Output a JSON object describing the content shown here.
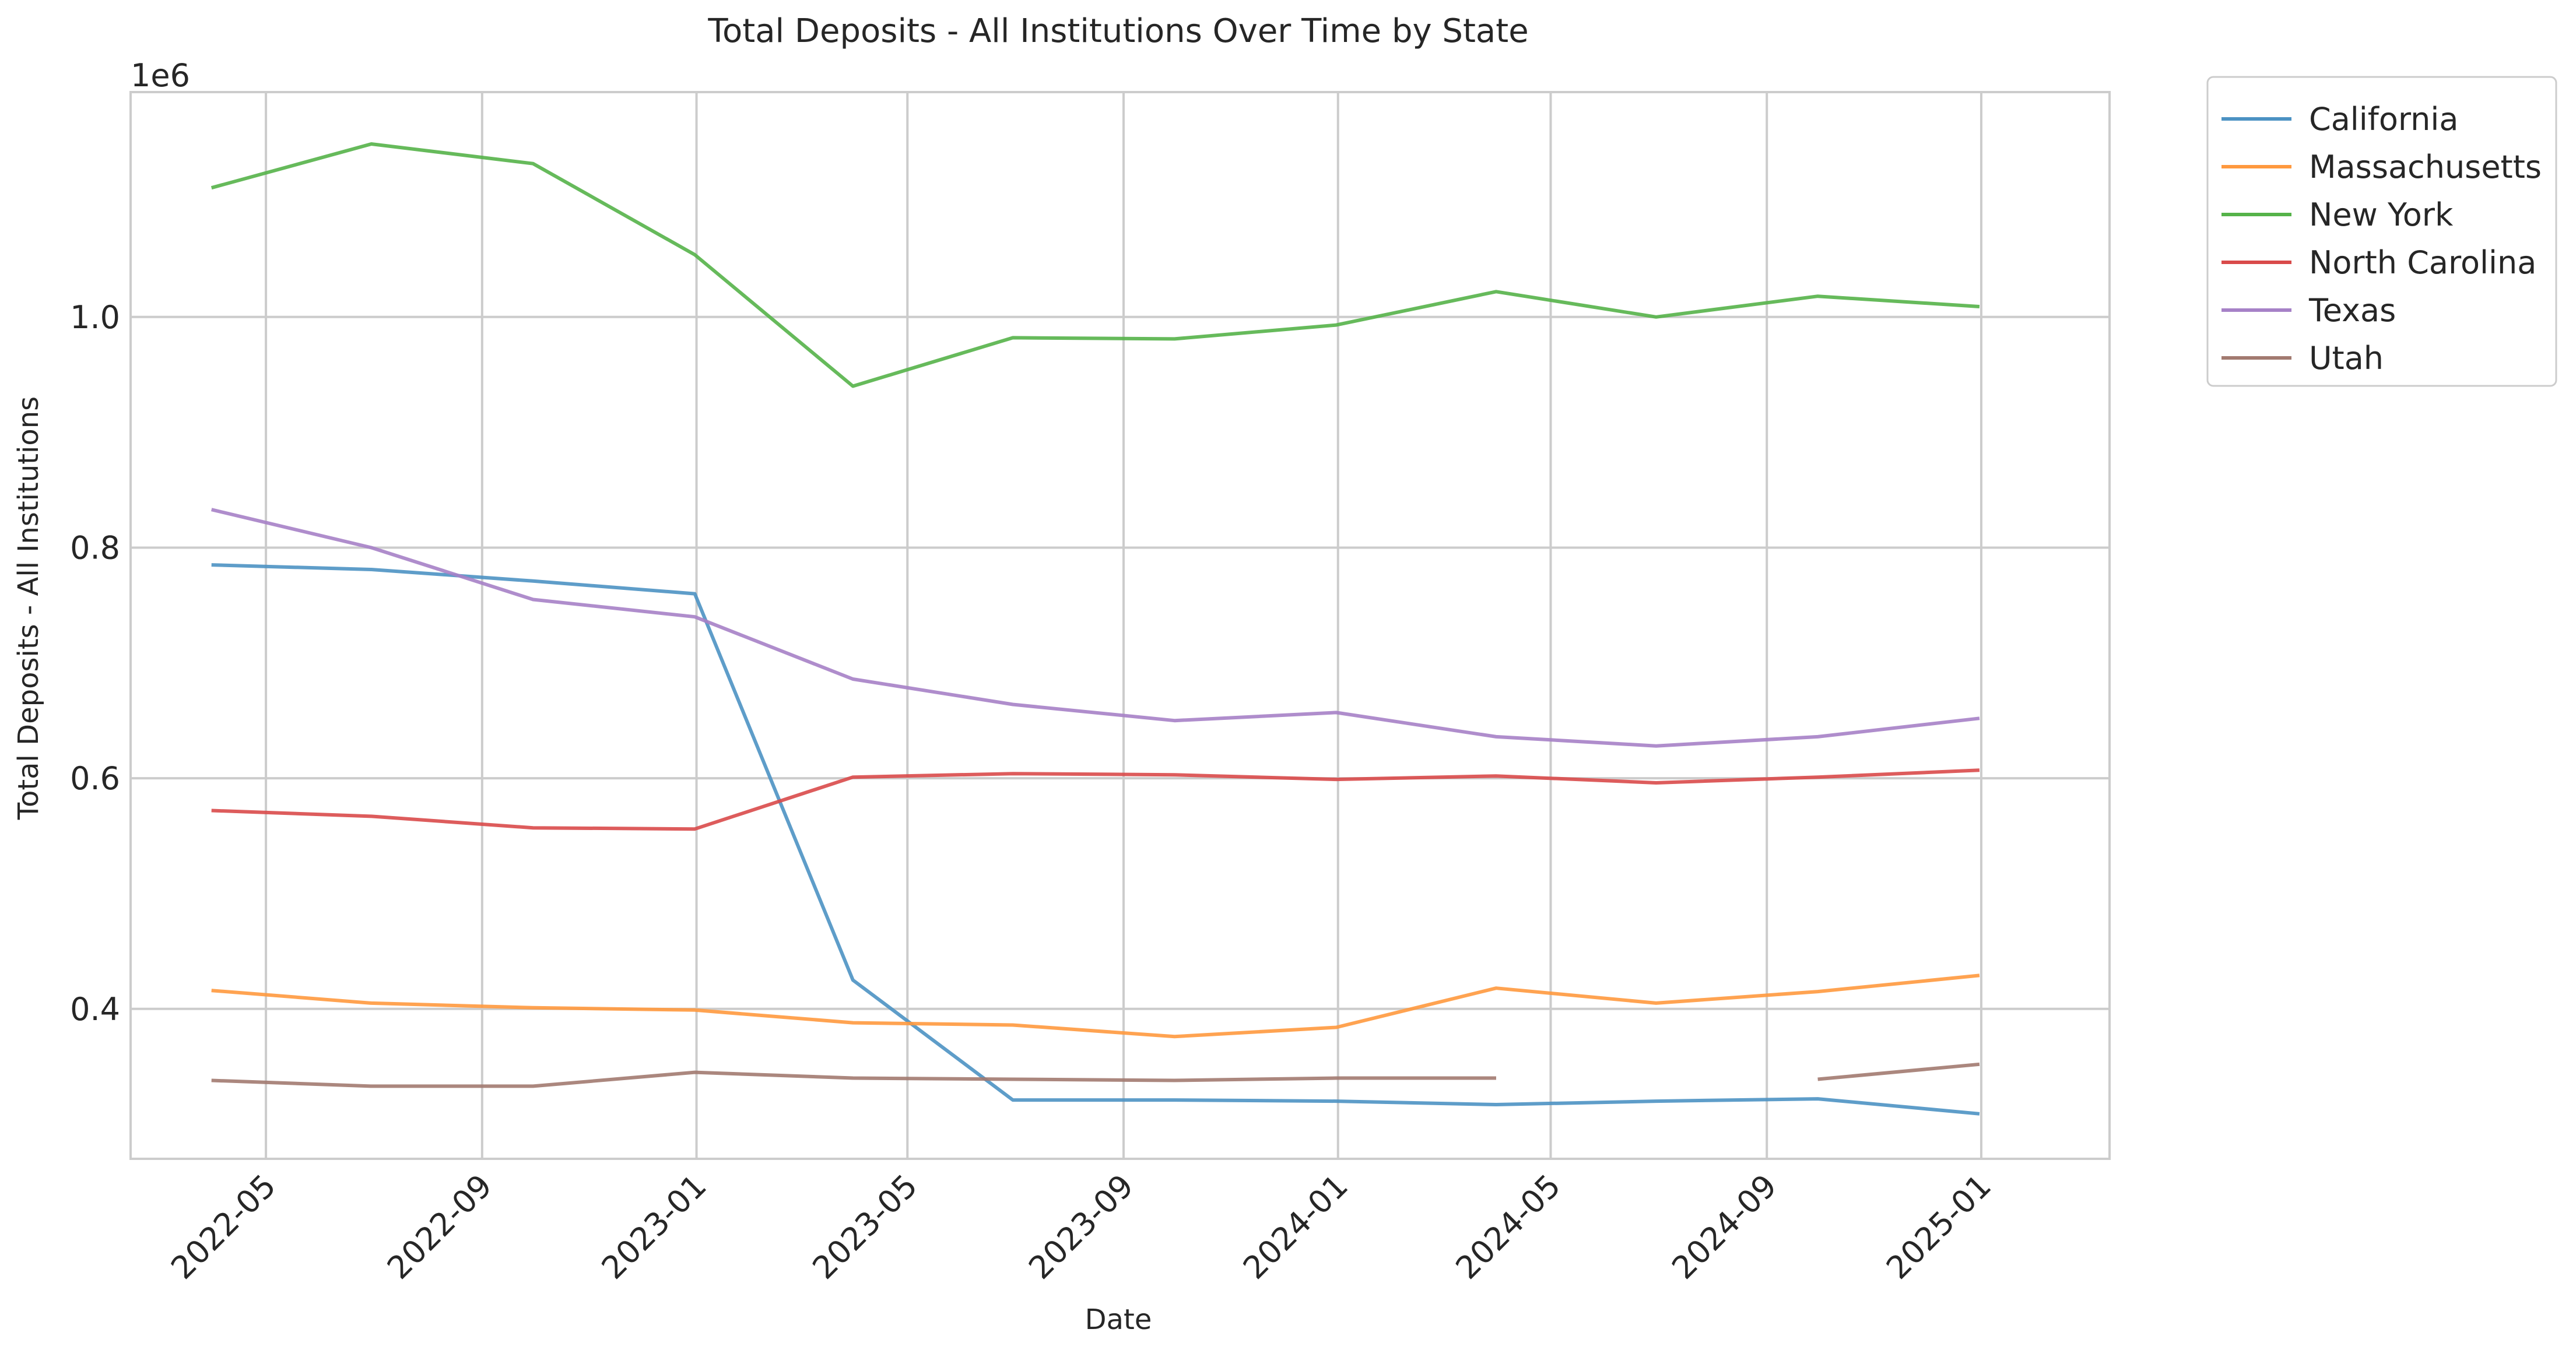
{
  "chart_data": {
    "type": "line",
    "title": "Total Deposits - All Institutions Over Time by State",
    "xlabel": "Date",
    "ylabel": "Total Deposits - All Institutions",
    "y_offset_label": "1e6",
    "xlim": [
      "2022-02-13",
      "2025-03-15"
    ],
    "ylim": [
      0.27,
      1.195
    ],
    "y_scale_note": "values in millions (1e6)",
    "x_ticks": [
      "2022-05",
      "2022-09",
      "2023-01",
      "2023-05",
      "2023-09",
      "2024-01",
      "2024-05",
      "2024-09",
      "2025-01"
    ],
    "y_ticks": [
      "0.4",
      "0.6",
      "0.8",
      "1.0"
    ],
    "y_tick_values": [
      0.4,
      0.6,
      0.8,
      1.0
    ],
    "x_tick_dates": [
      "2022-05-01",
      "2022-09-01",
      "2023-01-01",
      "2023-05-01",
      "2023-09-01",
      "2024-01-01",
      "2024-05-01",
      "2024-09-01",
      "2025-01-01"
    ],
    "grid": true,
    "legend_position": "outside-top-right",
    "series": [
      {
        "name": "California",
        "color": "#4c92c3",
        "points": [
          [
            "2022-03-31",
            0.785
          ],
          [
            "2022-06-30",
            0.781
          ],
          [
            "2022-09-30",
            0.771
          ],
          [
            "2022-12-31",
            0.76
          ],
          [
            "2023-03-31",
            0.425
          ],
          [
            "2023-06-30",
            0.321
          ],
          [
            "2023-09-30",
            0.321
          ],
          [
            "2023-12-31",
            0.32
          ],
          [
            "2024-03-31",
            0.317
          ],
          [
            "2024-06-30",
            0.32
          ],
          [
            "2024-09-30",
            0.322
          ],
          [
            "2024-12-31",
            0.309
          ]
        ]
      },
      {
        "name": "Massachusetts",
        "color": "#ff993e",
        "points": [
          [
            "2022-03-31",
            0.416
          ],
          [
            "2022-06-30",
            0.405
          ],
          [
            "2022-09-30",
            0.401
          ],
          [
            "2022-12-31",
            0.399
          ],
          [
            "2023-03-31",
            0.388
          ],
          [
            "2023-06-30",
            0.386
          ],
          [
            "2023-09-30",
            0.376
          ],
          [
            "2023-12-31",
            0.384
          ],
          [
            "2024-03-31",
            0.418
          ],
          [
            "2024-06-30",
            0.405
          ],
          [
            "2024-09-30",
            0.415
          ],
          [
            "2024-12-31",
            0.429
          ]
        ]
      },
      {
        "name": "New York",
        "color": "#55b349",
        "points": [
          [
            "2022-03-31",
            1.112
          ],
          [
            "2022-06-30",
            1.15
          ],
          [
            "2022-09-30",
            1.133
          ],
          [
            "2022-12-31",
            1.054
          ],
          [
            "2023-03-31",
            0.94
          ],
          [
            "2023-06-30",
            0.982
          ],
          [
            "2023-09-30",
            0.981
          ],
          [
            "2023-12-31",
            0.993
          ],
          [
            "2024-03-31",
            1.022
          ],
          [
            "2024-06-30",
            1.0
          ],
          [
            "2024-09-30",
            1.018
          ],
          [
            "2024-12-31",
            1.009
          ]
        ]
      },
      {
        "name": "North Carolina",
        "color": "#d94a4a",
        "points": [
          [
            "2022-03-31",
            0.572
          ],
          [
            "2022-06-30",
            0.567
          ],
          [
            "2022-09-30",
            0.557
          ],
          [
            "2022-12-31",
            0.556
          ],
          [
            "2023-03-31",
            0.601
          ],
          [
            "2023-06-30",
            0.604
          ],
          [
            "2023-09-30",
            0.603
          ],
          [
            "2023-12-31",
            0.599
          ],
          [
            "2024-03-31",
            0.602
          ],
          [
            "2024-06-30",
            0.596
          ],
          [
            "2024-09-30",
            0.601
          ],
          [
            "2024-12-31",
            0.607
          ]
        ]
      },
      {
        "name": "Texas",
        "color": "#a681c7",
        "points": [
          [
            "2022-03-31",
            0.833
          ],
          [
            "2022-06-30",
            0.8
          ],
          [
            "2022-09-30",
            0.755
          ],
          [
            "2022-12-31",
            0.74
          ],
          [
            "2023-03-31",
            0.686
          ],
          [
            "2023-06-30",
            0.664
          ],
          [
            "2023-09-30",
            0.65
          ],
          [
            "2023-12-31",
            0.657
          ],
          [
            "2024-03-31",
            0.636
          ],
          [
            "2024-06-30",
            0.628
          ],
          [
            "2024-09-30",
            0.636
          ],
          [
            "2024-12-31",
            0.652
          ]
        ]
      },
      {
        "name": "Utah",
        "color": "#a27a70",
        "points": [
          [
            "2022-03-31",
            0.338
          ],
          [
            "2022-06-30",
            0.333
          ],
          [
            "2022-09-30",
            0.333
          ],
          [
            "2022-12-31",
            0.345
          ],
          [
            "2023-03-31",
            0.34
          ],
          [
            "2023-06-30",
            0.339
          ],
          [
            "2023-09-30",
            0.338
          ],
          [
            "2023-12-31",
            0.34
          ],
          [
            "2024-03-31",
            0.34
          ],
          [
            "2024-06-30",
            null
          ],
          [
            "2024-09-30",
            0.339
          ],
          [
            "2024-12-31",
            0.352
          ]
        ]
      }
    ]
  }
}
